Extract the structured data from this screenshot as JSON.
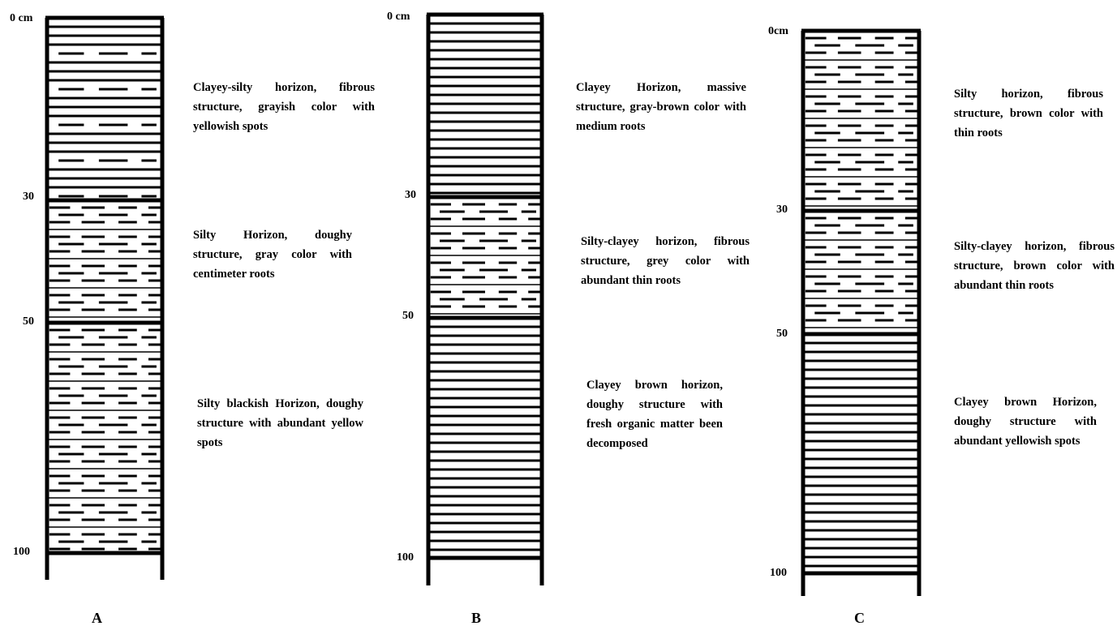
{
  "profiles": [
    {
      "label": "A",
      "depths": [
        "0 cm",
        "30",
        "50",
        "100"
      ],
      "horizons": [
        "Clayey-silty horizon, fibrous structure, grayish color with yellowish spots",
        "Silty Horizon, doughy structure, gray color with centimeter roots",
        "Silty blackish Horizon, doughy structure with abundant yellow spots"
      ]
    },
    {
      "label": "B",
      "depths": [
        "0 cm",
        "30",
        "50",
        "100"
      ],
      "horizons": [
        "Clayey Horizon, massive structure, gray-brown color with medium roots",
        "Silty-clayey horizon, fibrous structure, grey color with abundant thin roots",
        "Clayey brown horizon, doughy structure with fresh organic matter been decomposed"
      ]
    },
    {
      "label": "C",
      "depths": [
        "0cm",
        "30",
        "50",
        "100"
      ],
      "horizons": [
        "Silty horizon, fibrous structure, brown color with thin roots",
        "Silty-clayey horizon, fibrous structure, brown color with abundant thin roots",
        "Clayey brown Horizon, doughy structure with abundant yellowish spots"
      ]
    }
  ]
}
